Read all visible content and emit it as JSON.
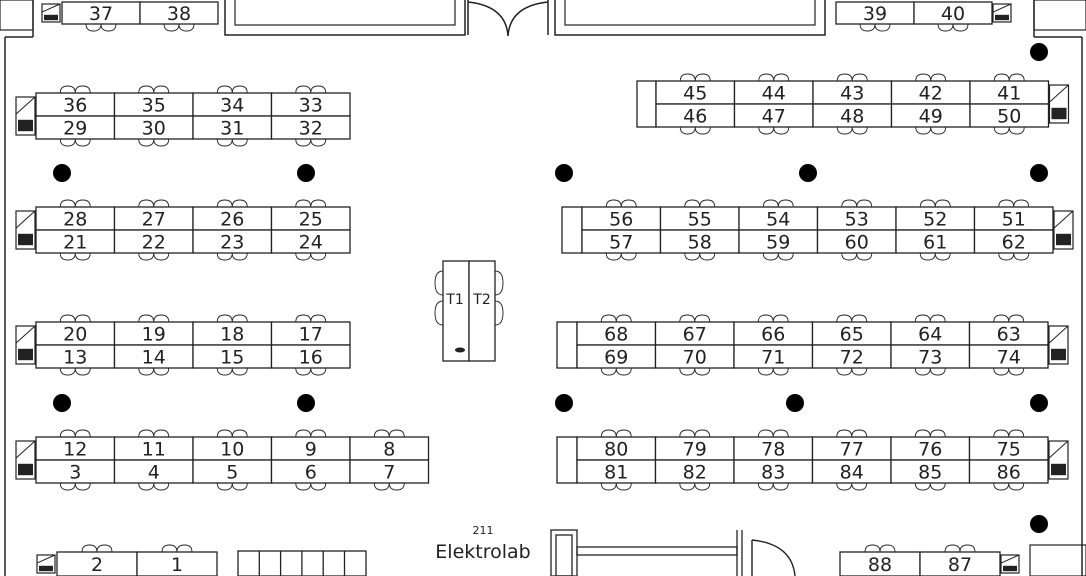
{
  "room": {
    "number": "211",
    "name": "Elektrolab"
  },
  "table_labels": {
    "T1": "T1",
    "T2": "T2"
  },
  "seats": [
    "1",
    "2",
    "3",
    "4",
    "5",
    "6",
    "7",
    "8",
    "9",
    "10",
    "11",
    "12",
    "13",
    "14",
    "15",
    "16",
    "17",
    "18",
    "19",
    "20",
    "21",
    "22",
    "23",
    "24",
    "25",
    "26",
    "27",
    "28",
    "29",
    "30",
    "31",
    "32",
    "33",
    "34",
    "35",
    "36",
    "37",
    "38",
    "39",
    "40",
    "41",
    "42",
    "43",
    "44",
    "45",
    "46",
    "47",
    "48",
    "49",
    "50",
    "51",
    "52",
    "53",
    "54",
    "55",
    "56",
    "57",
    "58",
    "59",
    "60",
    "61",
    "62",
    "63",
    "64",
    "65",
    "66",
    "67",
    "68",
    "69",
    "70",
    "71",
    "72",
    "73",
    "74",
    "75",
    "76",
    "77",
    "78",
    "79",
    "80",
    "81",
    "82",
    "83",
    "84",
    "85",
    "86",
    "87",
    "88"
  ],
  "colors": {
    "line": "#222222",
    "background": "#ffffff",
    "column": "#000000"
  }
}
